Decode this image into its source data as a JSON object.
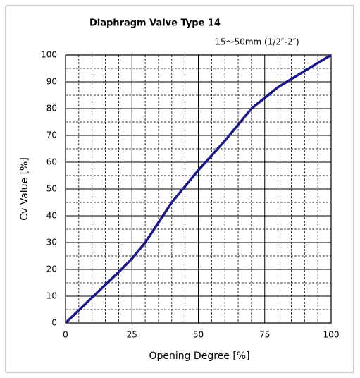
{
  "chart_data": {
    "type": "line",
    "title": "Diaphragm Valve Type 14",
    "subtitle": "15～50mm (1/2″-2″)",
    "x_label": "Opening Degree [%]",
    "y_label": "Cv Value [%]",
    "x": [
      0,
      10,
      20,
      25,
      30,
      40,
      50,
      60,
      70,
      80,
      90,
      100
    ],
    "series": [
      {
        "name": "Cv",
        "color": "#1a1a8c",
        "values": [
          0,
          9.5,
          19,
          24,
          30,
          45,
          57,
          68,
          80,
          88,
          94,
          100
        ]
      }
    ],
    "xlim": [
      0,
      100
    ],
    "xticks": [
      0,
      25,
      50,
      75,
      100
    ],
    "ylim": [
      0,
      100
    ],
    "yticks": [
      0,
      10,
      20,
      30,
      40,
      50,
      60,
      70,
      80,
      90,
      100
    ],
    "xminorticks": [
      5,
      10,
      15,
      20,
      30,
      35,
      40,
      45,
      55,
      60,
      65,
      70,
      80,
      85,
      90,
      95
    ],
    "yminorticks": [
      5,
      15,
      25,
      35,
      45,
      55,
      65,
      75,
      85,
      95
    ],
    "grid": true
  }
}
